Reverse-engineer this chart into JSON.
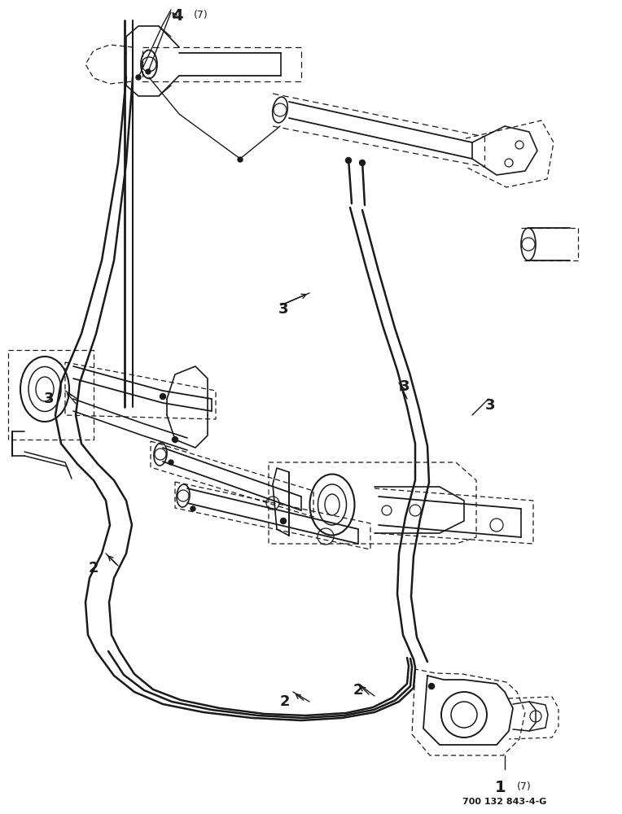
{
  "bg_color": "#ffffff",
  "line_color": "#1a1a1a",
  "dash_color": "#1a1a1a",
  "label_color": "#000000",
  "part_number_text": "700 132 843-4-G",
  "figsize": [
    7.64,
    10.0
  ],
  "dpi": 100
}
